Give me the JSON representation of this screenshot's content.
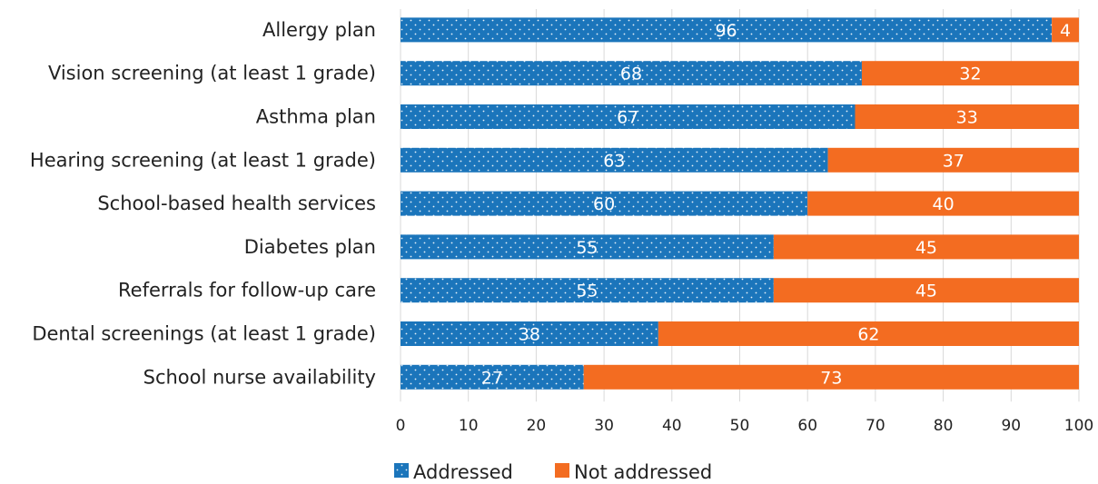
{
  "colors": {
    "addressed": "#1b75bb",
    "not_addressed": "#f36c21",
    "grid": "#d9d9d9",
    "text": "#222222",
    "bar_label": "#ffffff"
  },
  "chart_data": {
    "type": "bar",
    "orientation": "horizontal",
    "stacked": true,
    "categories": [
      "Allergy plan",
      "Vision screening (at least 1 grade)",
      "Asthma plan",
      "Hearing screening (at least 1 grade)",
      "School-based health services",
      "Diabetes plan",
      "Referrals for follow-up care",
      "Dental screenings (at least 1 grade)",
      "School nurse availability"
    ],
    "series": [
      {
        "name": "Addressed",
        "values": [
          96,
          68,
          67,
          63,
          60,
          55,
          55,
          38,
          27
        ]
      },
      {
        "name": "Not addressed",
        "values": [
          4,
          32,
          33,
          37,
          40,
          45,
          45,
          62,
          73
        ]
      }
    ],
    "xlim": [
      0,
      100
    ],
    "xticks": [
      "0",
      "10",
      "20",
      "30",
      "40",
      "50",
      "60",
      "70",
      "80",
      "90",
      "100"
    ],
    "grid": true,
    "legend_position": "bottom"
  }
}
